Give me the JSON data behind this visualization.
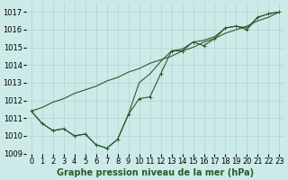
{
  "xlabel": "Graphe pression niveau de la mer (hPa)",
  "bg_color": "#cceae8",
  "grid_color": "#b0d4d0",
  "line_color": "#2d5a2d",
  "x_values": [
    0,
    1,
    2,
    3,
    4,
    5,
    6,
    7,
    8,
    9,
    10,
    11,
    12,
    13,
    14,
    15,
    16,
    17,
    18,
    19,
    20,
    21,
    22,
    23
  ],
  "series_main": [
    1011.4,
    1010.7,
    1010.3,
    1010.4,
    1010.0,
    1010.1,
    1009.5,
    1009.3,
    1009.8,
    1011.2,
    1012.1,
    1012.2,
    1013.5,
    1014.8,
    1014.8,
    1015.3,
    1015.1,
    1015.5,
    1016.1,
    1016.2,
    1016.0,
    1016.7,
    1016.9,
    1017.0
  ],
  "series_upper": [
    1011.4,
    1010.7,
    1010.3,
    1010.4,
    1010.0,
    1010.1,
    1009.5,
    1009.3,
    1009.8,
    1011.2,
    1013.0,
    1013.5,
    1014.2,
    1014.8,
    1014.9,
    1015.3,
    1015.4,
    1015.6,
    1016.1,
    1016.2,
    1016.1,
    1016.7,
    1016.9,
    1017.0
  ],
  "series_linear": [
    1011.4,
    1011.6,
    1011.9,
    1012.1,
    1012.4,
    1012.6,
    1012.8,
    1013.1,
    1013.3,
    1013.6,
    1013.8,
    1014.1,
    1014.3,
    1014.5,
    1014.8,
    1015.0,
    1015.3,
    1015.5,
    1015.8,
    1016.0,
    1016.2,
    1016.5,
    1016.7,
    1017.0
  ],
  "ylim": [
    1009.0,
    1017.5
  ],
  "yticks": [
    1009,
    1010,
    1011,
    1012,
    1013,
    1014,
    1015,
    1016,
    1017
  ],
  "label_fontsize": 7.0,
  "tick_fontsize": 6.0
}
